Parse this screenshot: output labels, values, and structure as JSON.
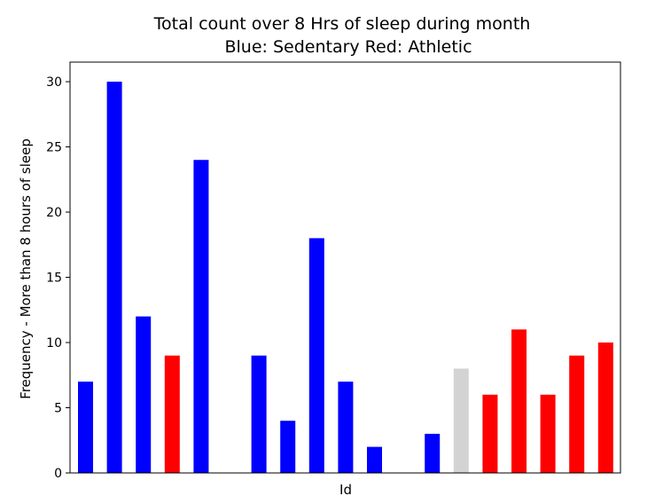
{
  "chart_data": {
    "type": "bar",
    "title": "Total count over 8 Hrs of sleep during month",
    "subtitle": "Blue: Sedentary  Red: Athletic",
    "xlabel": "Id",
    "ylabel": "Frequency - More than 8 hours of sleep",
    "ylim": [
      0,
      31.5
    ],
    "yticks": [
      0,
      5,
      10,
      15,
      20,
      25,
      30
    ],
    "grid": false,
    "legend": "none",
    "values": [
      7,
      30,
      12,
      9,
      24,
      0,
      9,
      4,
      18,
      7,
      2,
      0,
      3,
      8,
      6,
      11,
      6,
      9,
      10
    ],
    "colors": [
      "#0000ff",
      "#0000ff",
      "#0000ff",
      "#ff0000",
      "#0000ff",
      "#0000ff",
      "#0000ff",
      "#0000ff",
      "#0000ff",
      "#0000ff",
      "#0000ff",
      "#0000ff",
      "#0000ff",
      "#d3d3d3",
      "#ff0000",
      "#ff0000",
      "#ff0000",
      "#ff0000",
      "#ff0000"
    ]
  }
}
